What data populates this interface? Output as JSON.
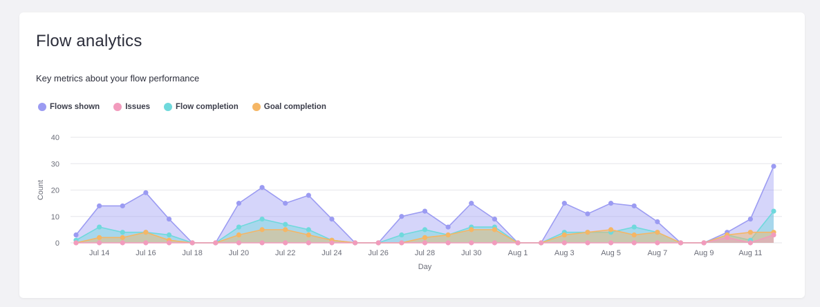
{
  "header": {
    "title": "Flow analytics",
    "subtitle": "Key metrics about your flow performance"
  },
  "chart_data": {
    "type": "area",
    "xlabel": "Day",
    "ylabel": "Count",
    "ylim": [
      0,
      40
    ],
    "yticks": [
      0,
      10,
      20,
      30,
      40
    ],
    "grid": true,
    "legend_position": "top-left",
    "x_tick_labels": [
      "Jul 14",
      "Jul 16",
      "Jul 18",
      "Jul 20",
      "Jul 22",
      "Jul 24",
      "Jul 26",
      "Jul 28",
      "Jul 30",
      "Aug 1",
      "Aug 3",
      "Aug 5",
      "Aug 7",
      "Aug 9",
      "Aug 11"
    ],
    "x": [
      "Jul 13",
      "Jul 14",
      "Jul 15",
      "Jul 16",
      "Jul 17",
      "Jul 18",
      "Jul 19",
      "Jul 20",
      "Jul 21",
      "Jul 22",
      "Jul 23",
      "Jul 24",
      "Jul 25",
      "Jul 26",
      "Jul 27",
      "Jul 28",
      "Jul 29",
      "Jul 30",
      "Jul 31",
      "Aug 1",
      "Aug 2",
      "Aug 3",
      "Aug 4",
      "Aug 5",
      "Aug 6",
      "Aug 7",
      "Aug 8",
      "Aug 9",
      "Aug 10",
      "Aug 11",
      "Aug 12"
    ],
    "series": [
      {
        "name": "Flows shown",
        "color": "#9b9bf2",
        "values": [
          3,
          14,
          14,
          19,
          9,
          0,
          0,
          15,
          21,
          15,
          18,
          9,
          0,
          0,
          10,
          12,
          6,
          15,
          9,
          0,
          0,
          15,
          11,
          15,
          14,
          8,
          0,
          0,
          4,
          9,
          29
        ]
      },
      {
        "name": "Issues",
        "color": "#f29bbd",
        "values": [
          0,
          0,
          0,
          0,
          0,
          0,
          0,
          0,
          0,
          0,
          0,
          0,
          0,
          0,
          0,
          0,
          0,
          0,
          0,
          0,
          0,
          0,
          0,
          0,
          0,
          0,
          0,
          0,
          2,
          0,
          3
        ]
      },
      {
        "name": "Flow completion",
        "color": "#6fd9dc",
        "values": [
          1,
          6,
          4,
          4,
          3,
          0,
          0,
          6,
          9,
          7,
          5,
          1,
          0,
          0,
          3,
          5,
          3,
          6,
          6,
          0,
          0,
          4,
          4,
          4,
          6,
          4,
          0,
          0,
          3,
          1,
          12
        ]
      },
      {
        "name": "Goal completion",
        "color": "#f5b665",
        "values": [
          0,
          2,
          2,
          4,
          1,
          0,
          0,
          3,
          5,
          5,
          3,
          1,
          0,
          0,
          0,
          2,
          3,
          5,
          5,
          0,
          0,
          3,
          4,
          5,
          3,
          4,
          0,
          0,
          3,
          4,
          4
        ]
      }
    ]
  }
}
